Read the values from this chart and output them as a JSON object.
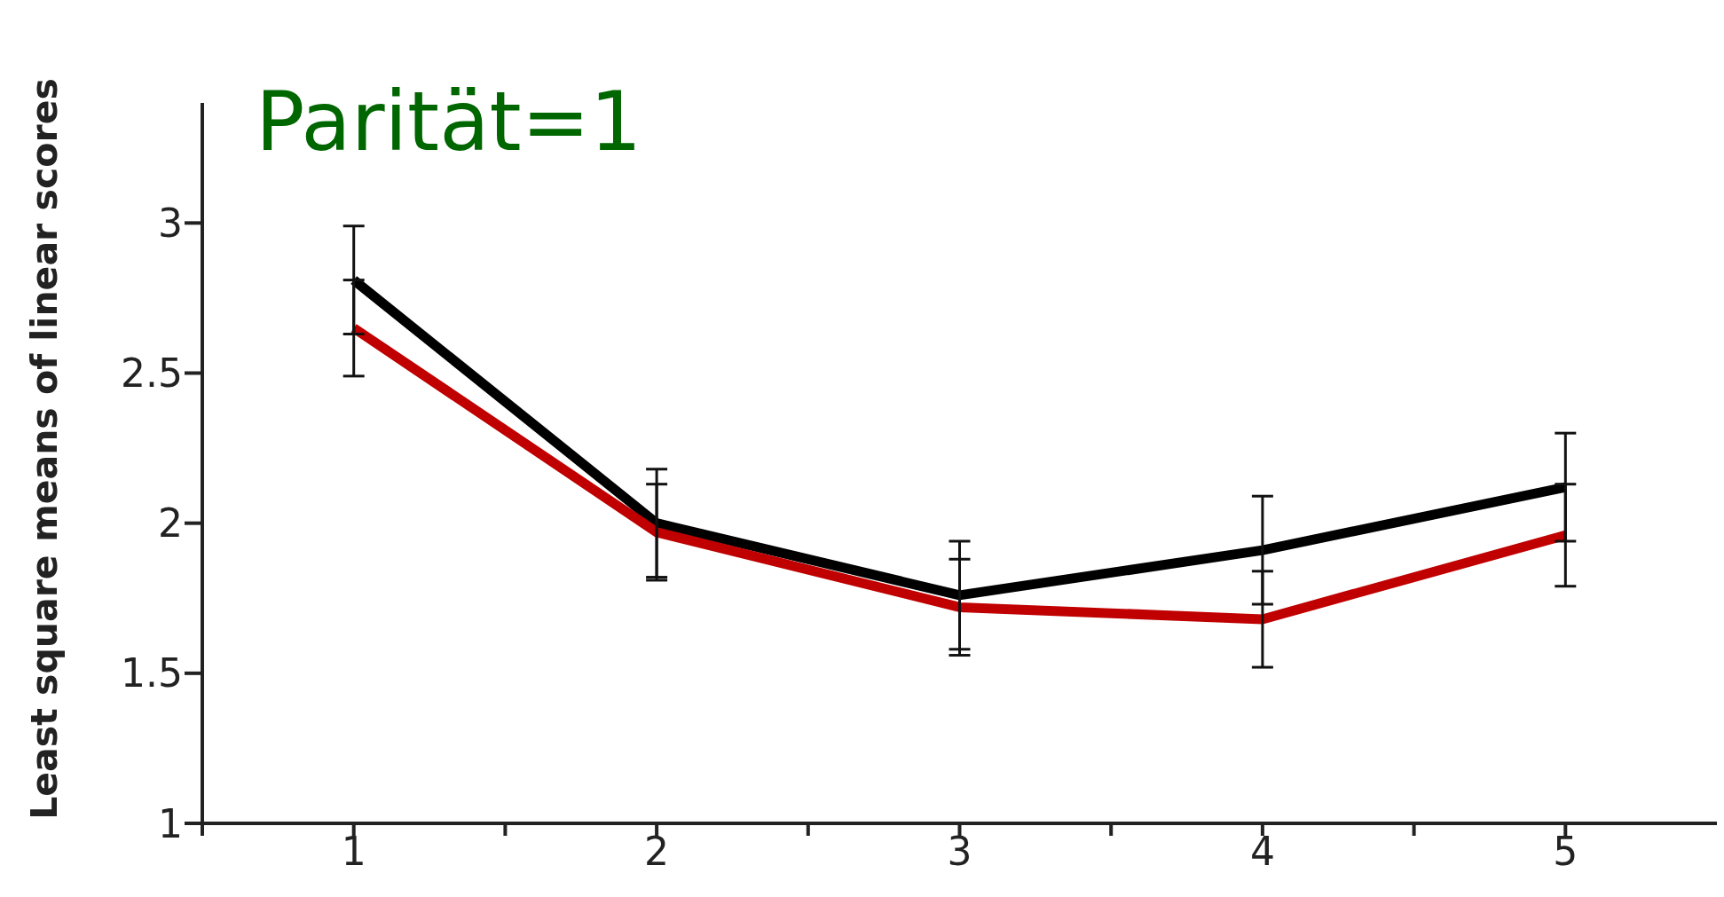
{
  "chart_data": {
    "type": "line",
    "title": "Parität=1",
    "ylabel": "Least square means of linear scores",
    "x": [
      1,
      2,
      3,
      4,
      5
    ],
    "xlim": [
      0.5,
      5.5
    ],
    "xticks": [
      {
        "value": 0.5,
        "label": null
      },
      1,
      {
        "value": 1.5,
        "label": null
      },
      2,
      {
        "value": 2.5,
        "label": null
      },
      3,
      {
        "value": 3.5,
        "label": null
      },
      4,
      {
        "value": 4.5,
        "label": null
      },
      5
    ],
    "ylim": [
      1,
      3.4
    ],
    "yticks": [
      1,
      1.5,
      2,
      2.5,
      3
    ],
    "grid": false,
    "marker": "none",
    "line_style": "solid",
    "series": [
      {
        "color": "#000000",
        "values": [
          2.81,
          2.0,
          1.76,
          1.91,
          2.12
        ],
        "errors": [
          0.18,
          0.18,
          0.18,
          0.18,
          0.18
        ]
      },
      {
        "color": "#c00000",
        "values": [
          2.65,
          1.97,
          1.72,
          1.68,
          1.96
        ],
        "errors": [
          0.16,
          0.16,
          0.16,
          0.16,
          0.17
        ]
      }
    ]
  }
}
